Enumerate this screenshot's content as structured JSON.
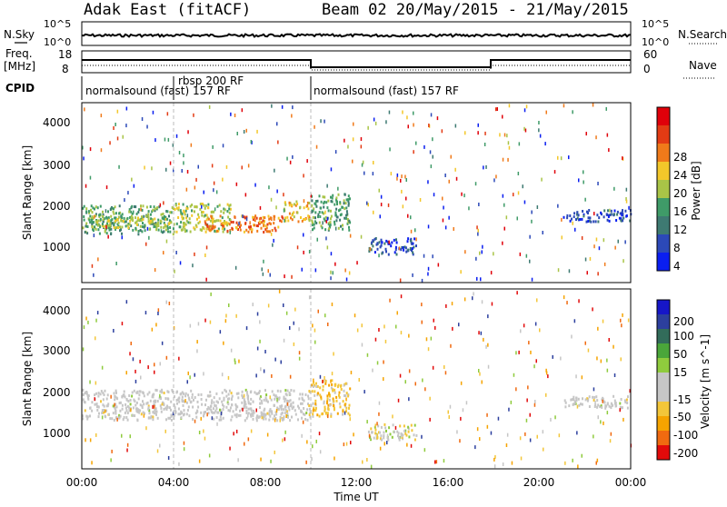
{
  "header": {
    "station": "Adak East (fitACF)",
    "beam_date": "Beam 02  20/May/2015 - 21/May/2015"
  },
  "nsky_panel": {
    "left_label": "N.Sky",
    "right_label": "N.Search",
    "left_ticks": [
      "10^5",
      "10^0"
    ],
    "right_ticks": [
      "10^5",
      "10^0"
    ]
  },
  "freq_panel": {
    "left_label_1": "Freq.",
    "left_label_2": "[MHz]",
    "right_label": "Nave",
    "left_ticks": [
      "18",
      "8"
    ],
    "right_ticks": [
      "60",
      "0"
    ]
  },
  "cpid_panel": {
    "label": "CPID",
    "segments": [
      {
        "text": "normalsound (fast) 157 RF",
        "start_hr": 0.0
      },
      {
        "text": "rbsp 200 RF",
        "start_hr": 4.0
      },
      {
        "text": "normalsound (fast) 157 RF",
        "start_hr": 10.0
      }
    ]
  },
  "colors": {
    "power_scale": [
      "#0a1ef0",
      "#2c49b8",
      "#3e7a72",
      "#3f9b68",
      "#a9c447",
      "#f3c72a",
      "#f07a1a",
      "#e33b14",
      "#e0000a"
    ],
    "velocity_scale": [
      "#e20a0a",
      "#f06a10",
      "#f6a400",
      "#f3c63a",
      "#c6c6c6",
      "#c6c6c6",
      "#8fcb3d",
      "#4aa63a",
      "#326c5a",
      "#2c3f9e",
      "#1616c8"
    ],
    "gray_scatter": "#c6c6c6"
  },
  "chart_data": [
    {
      "type": "heatmap",
      "name": "power",
      "ylabel": "Slant Range [km]",
      "colorbar_label": "Power [dB]",
      "colorbar_ticks": [
        "28",
        "24",
        "20",
        "16",
        "12",
        "8",
        "4"
      ],
      "xlim_hours": [
        0,
        24
      ],
      "ylim_km": [
        180,
        4600
      ],
      "yticks": [
        "4000",
        "3000",
        "2000",
        "1000"
      ],
      "bands": [
        {
          "t0": 0.0,
          "t1": 4.0,
          "r0": 1400,
          "r1": 2100,
          "level": 3
        },
        {
          "t0": 0.3,
          "t1": 3.8,
          "r0": 1550,
          "r1": 1850,
          "level": 4
        },
        {
          "t0": 4.0,
          "t1": 6.5,
          "r0": 1450,
          "r1": 2150,
          "level": 4
        },
        {
          "t0": 5.3,
          "t1": 8.8,
          "r0": 1450,
          "r1": 1850,
          "level": 6
        },
        {
          "t0": 8.8,
          "t1": 10.0,
          "r0": 1700,
          "r1": 2200,
          "level": 5
        },
        {
          "t0": 10.0,
          "t1": 11.7,
          "r0": 1500,
          "r1": 2400,
          "level": 3
        },
        {
          "t0": 12.5,
          "t1": 14.6,
          "r0": 900,
          "r1": 1300,
          "level": 1
        },
        {
          "t0": 21.0,
          "t1": 24.0,
          "r0": 1700,
          "r1": 2000,
          "level": 1
        }
      ]
    },
    {
      "type": "heatmap",
      "name": "velocity",
      "ylabel": "Slant Range [km]",
      "colorbar_label": "Velocity [m s^-1]",
      "colorbar_ticks": [
        "200",
        "100",
        "50",
        "15",
        "-15",
        "-50",
        "-100",
        "-200"
      ],
      "xlabel": "Time UT",
      "xticks": [
        "00:00",
        "04:00",
        "08:00",
        "12:00",
        "16:00",
        "20:00",
        "00:00"
      ],
      "xlim_hours": [
        0,
        24
      ],
      "ylim_km": [
        180,
        4600
      ],
      "yticks": [
        "4000",
        "3000",
        "2000",
        "1000"
      ],
      "bands": [
        {
          "t0": 0.0,
          "t1": 10.0,
          "r0": 1400,
          "r1": 2150,
          "level": 5
        },
        {
          "t0": 10.0,
          "t1": 11.7,
          "r0": 1500,
          "r1": 2400,
          "level": 3
        },
        {
          "t0": 12.5,
          "t1": 14.6,
          "r0": 900,
          "r1": 1300,
          "level": 4
        },
        {
          "t0": 21.0,
          "t1": 24.0,
          "r0": 1700,
          "r1": 2000,
          "level": 5
        }
      ]
    }
  ]
}
